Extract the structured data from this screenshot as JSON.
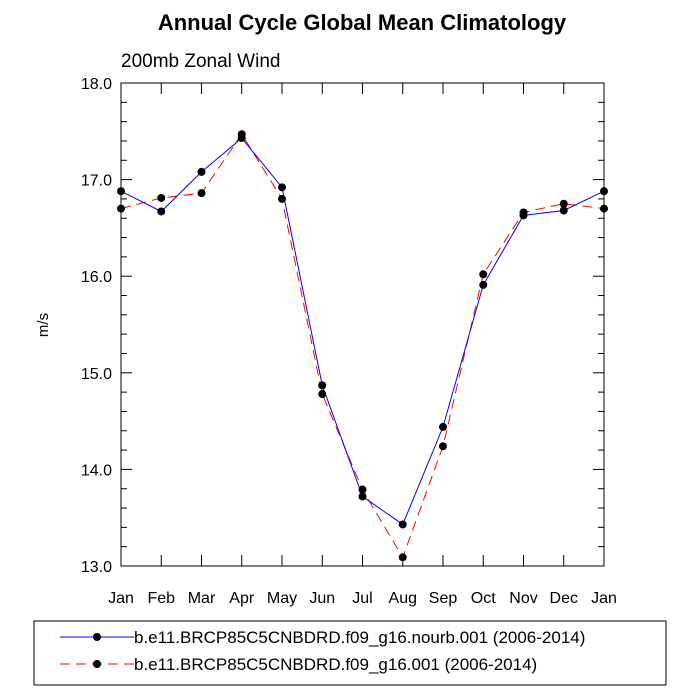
{
  "chart_data": {
    "type": "line",
    "title": "Annual Cycle Global Mean Climatology",
    "subtitle": "200mb Zonal Wind",
    "xlabel": "",
    "ylabel": "m/s",
    "categories": [
      "Jan",
      "Feb",
      "Mar",
      "Apr",
      "May",
      "Jun",
      "Jul",
      "Aug",
      "Sep",
      "Oct",
      "Nov",
      "Dec",
      "Jan"
    ],
    "ylim": [
      13.0,
      18.0
    ],
    "yticks": [
      "13.0",
      "14.0",
      "15.0",
      "16.0",
      "17.0",
      "18.0"
    ],
    "grid": false,
    "legend_position": "bottom",
    "series": [
      {
        "name": "b.e11.BRCP85C5CNBDRD.f09_g16.nourb.001 (2006-2014)",
        "color": "#0000ff",
        "dash": "solid",
        "marker": "filled-circle",
        "values": [
          16.88,
          16.67,
          17.08,
          17.43,
          16.92,
          14.87,
          13.72,
          13.43,
          14.44,
          15.91,
          16.63,
          16.68,
          16.88
        ]
      },
      {
        "name": "b.e11.BRCP85C5CNBDRD.f09_g16.001 (2006-2014)",
        "color": "#ff0000",
        "dash": "dashed",
        "marker": "filled-circle",
        "values": [
          16.7,
          16.81,
          16.86,
          17.47,
          16.8,
          14.78,
          13.79,
          13.09,
          14.24,
          16.02,
          16.66,
          16.75,
          16.7
        ]
      }
    ]
  }
}
